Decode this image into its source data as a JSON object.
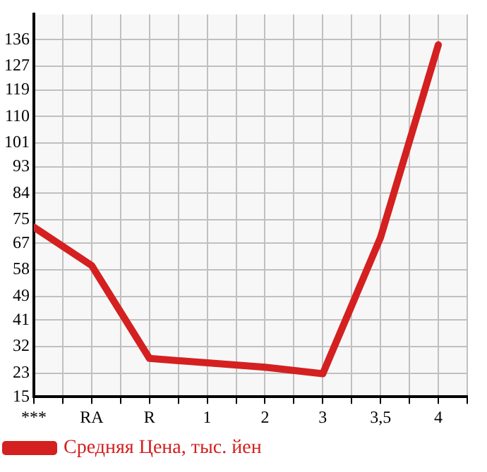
{
  "chart_data": {
    "type": "line",
    "categories": [
      "***",
      "RA",
      "R",
      "1",
      "2",
      "3",
      "3,5",
      "4"
    ],
    "series": [
      {
        "name": "Средняя Цена, тыс. йен",
        "color": "#d42020",
        "values": [
          72.5,
          59.5,
          28,
          26.5,
          25,
          22.8,
          69,
          134.3
        ]
      }
    ],
    "ylim": [
      15,
      144.6
    ],
    "yticks": [
      15,
      23,
      32,
      41,
      49,
      58,
      67,
      75,
      84,
      93,
      101,
      110,
      119,
      127,
      136
    ],
    "grid": true,
    "legend": "bottom left",
    "marker": "none",
    "line_style": "solid"
  }
}
